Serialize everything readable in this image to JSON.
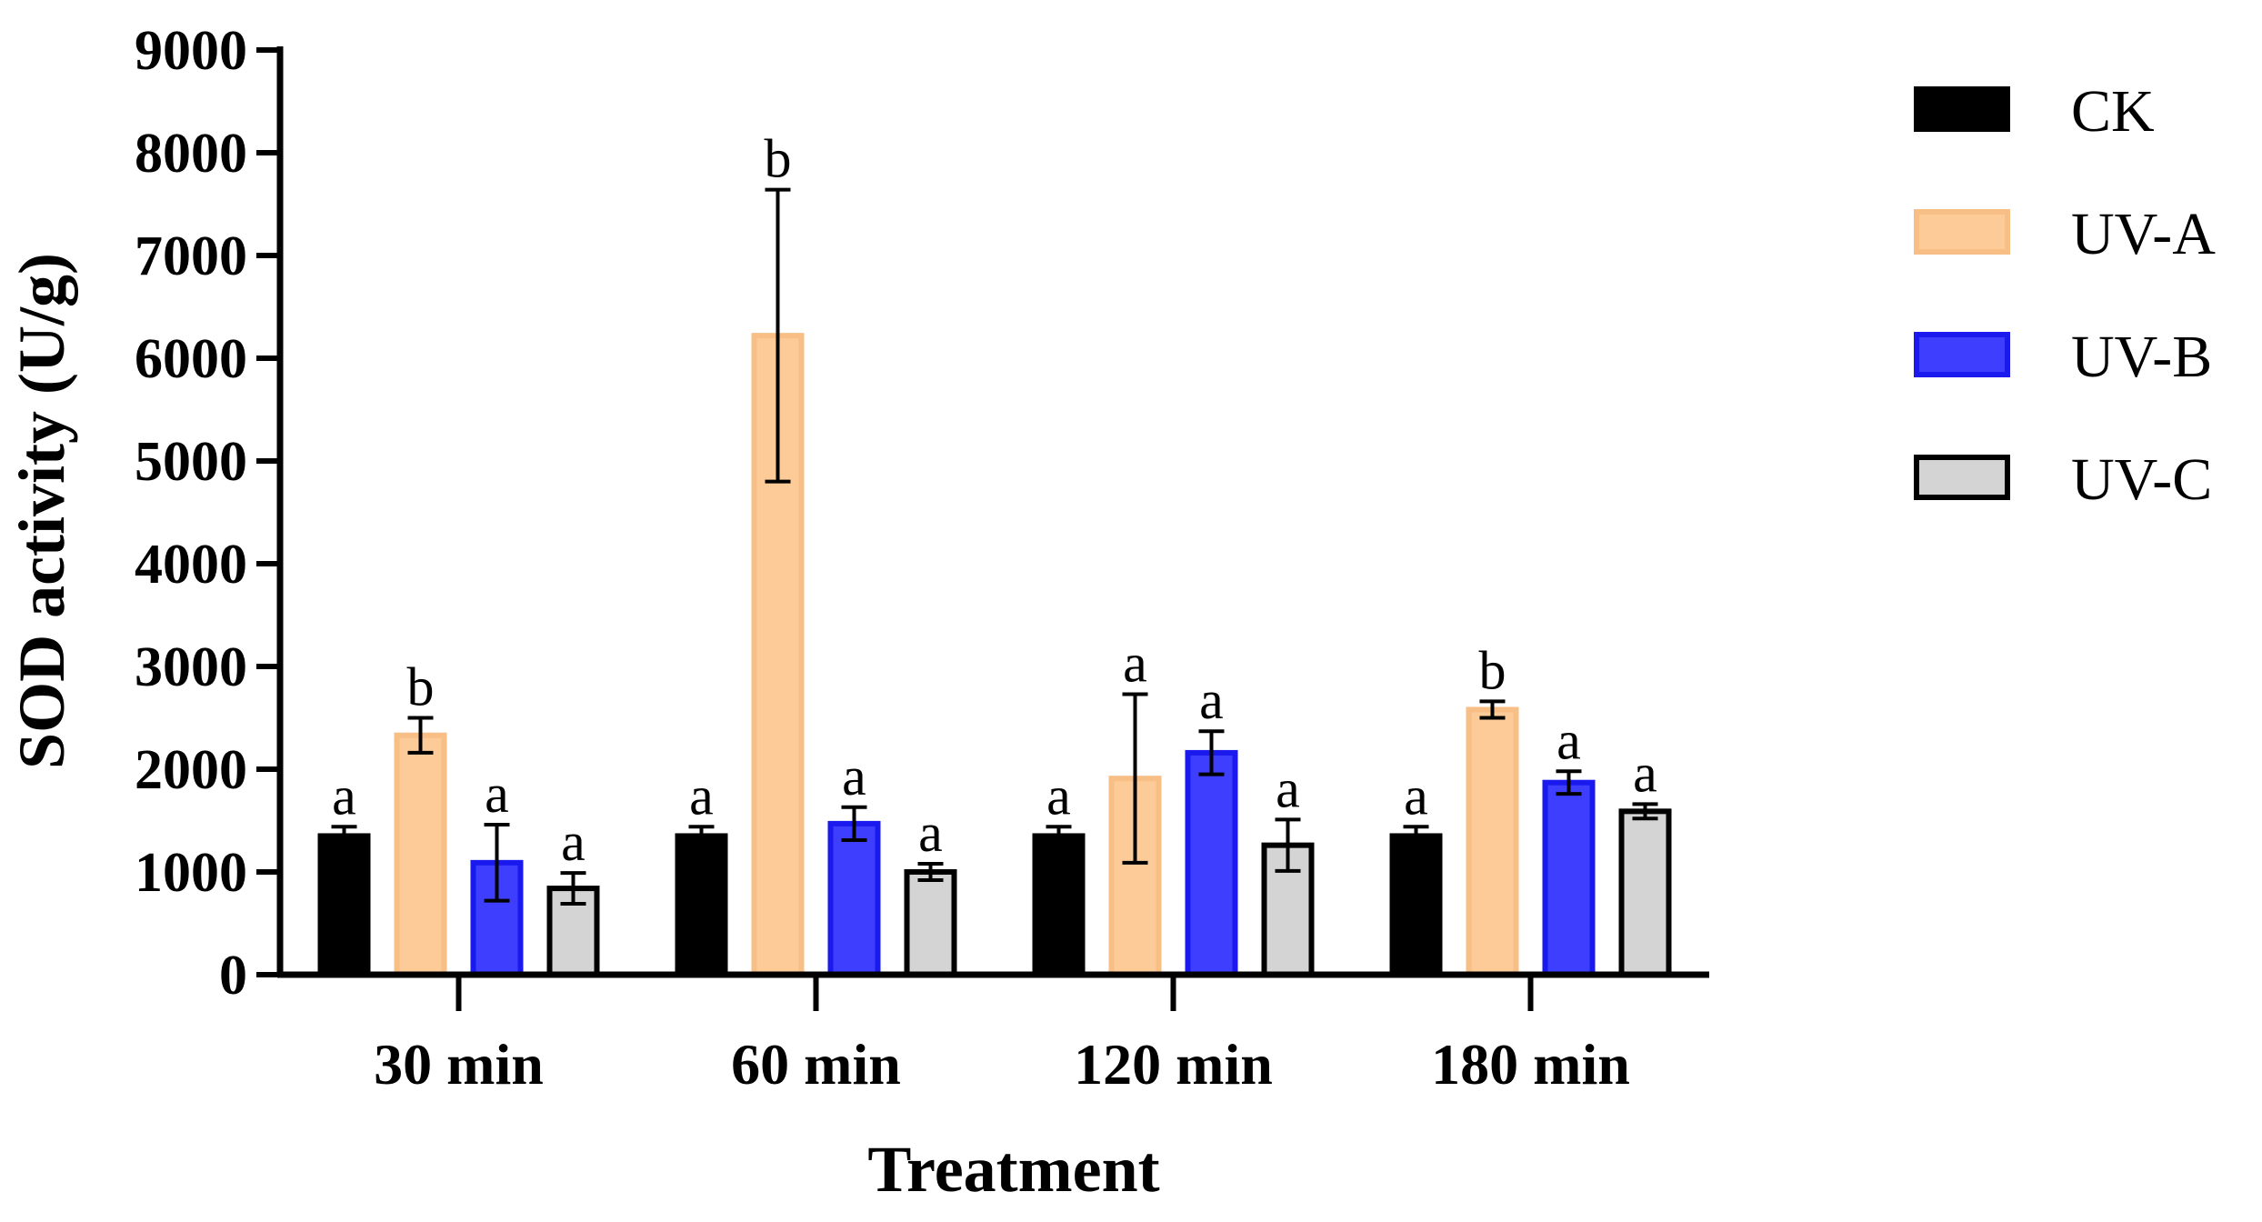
{
  "chart_data": {
    "type": "bar",
    "title": "",
    "xlabel": "Treatment",
    "ylabel": "SOD activity (U/g)",
    "ylim": [
      0,
      9000
    ],
    "yticks": [
      "0",
      "1000",
      "2000",
      "3000",
      "4000",
      "5000",
      "6000",
      "7000",
      "8000",
      "9000"
    ],
    "categories": [
      "30 min",
      "60 min",
      "120 min",
      "180 min"
    ],
    "legend_position": "right",
    "series": [
      {
        "name": "CK",
        "fill": "#000000",
        "stroke": "#000000",
        "values": [
          1350,
          1350,
          1350,
          1350
        ],
        "errors": [
          90,
          90,
          90,
          90
        ],
        "letters": [
          "a",
          "a",
          "a",
          "a"
        ]
      },
      {
        "name": "UV-A",
        "fill": "#FDCB98",
        "stroke": "#F7BE86",
        "values": [
          2330,
          6220,
          1910,
          2580
        ],
        "errors": [
          170,
          1420,
          820,
          80
        ],
        "letters": [
          "b",
          "b",
          "a",
          "b"
        ]
      },
      {
        "name": "UV-B",
        "fill": "#3E3EFF",
        "stroke": "#1A1AEE",
        "values": [
          1090,
          1470,
          2160,
          1870
        ],
        "errors": [
          370,
          160,
          210,
          110
        ],
        "letters": [
          "a",
          "a",
          "a",
          "a"
        ]
      },
      {
        "name": "UV-C",
        "fill": "#D4D4D4",
        "stroke": "#000000",
        "values": [
          840,
          1000,
          1260,
          1590
        ],
        "errors": [
          150,
          80,
          250,
          70
        ],
        "letters": [
          "a",
          "a",
          "a",
          "a"
        ]
      }
    ]
  }
}
